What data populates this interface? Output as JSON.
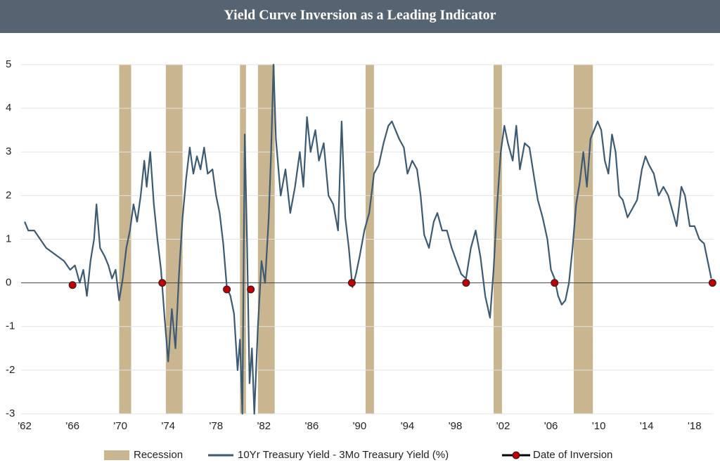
{
  "chart_data": {
    "type": "line",
    "title": "Yield Curve Inversion as a Leading Indicator",
    "xlim": [
      1961.7,
      2019.6
    ],
    "ylim": [
      -3,
      5
    ],
    "xticks": [
      {
        "value": 1962,
        "label": "'62"
      },
      {
        "value": 1966,
        "label": "'66"
      },
      {
        "value": 1970,
        "label": "'70"
      },
      {
        "value": 1974,
        "label": "'74"
      },
      {
        "value": 1978,
        "label": "'78"
      },
      {
        "value": 1982,
        "label": "'82"
      },
      {
        "value": 1986,
        "label": "'86"
      },
      {
        "value": 1990,
        "label": "'90"
      },
      {
        "value": 1994,
        "label": "'94"
      },
      {
        "value": 1998,
        "label": "'98"
      },
      {
        "value": 2002,
        "label": "'02"
      },
      {
        "value": 2006,
        "label": "'06"
      },
      {
        "value": 2010,
        "label": "'10"
      },
      {
        "value": 2014,
        "label": "'14"
      },
      {
        "value": 2018,
        "label": "'18"
      }
    ],
    "yticks": [
      -3,
      -2,
      -1,
      0,
      1,
      2,
      3,
      4,
      5
    ],
    "grid": true,
    "series": [
      {
        "name": "Recession",
        "color": "#c9b58f",
        "ranges": [
          [
            1969.9,
            1970.9
          ],
          [
            1973.8,
            1975.2
          ],
          [
            1980.0,
            1980.5
          ],
          [
            1981.5,
            1982.9
          ],
          [
            1990.5,
            1991.2
          ],
          [
            2001.2,
            2001.9
          ],
          [
            2007.9,
            2009.5
          ]
        ]
      },
      {
        "name": "10Yr Treasury Yield - 3Mo Treasury Yield (%)",
        "color": "#3d5a73",
        "x": [
          1962.0,
          1962.3,
          1962.8,
          1963.3,
          1963.8,
          1964.3,
          1964.8,
          1965.3,
          1965.8,
          1966.2,
          1966.6,
          1966.9,
          1967.2,
          1967.5,
          1967.8,
          1968.0,
          1968.3,
          1968.7,
          1969.0,
          1969.3,
          1969.6,
          1969.9,
          1970.2,
          1970.5,
          1970.8,
          1971.1,
          1971.4,
          1971.7,
          1972.0,
          1972.2,
          1972.5,
          1972.8,
          1973.1,
          1973.4,
          1973.7,
          1974.0,
          1974.3,
          1974.6,
          1974.9,
          1975.2,
          1975.5,
          1975.8,
          1976.1,
          1976.4,
          1976.7,
          1977.0,
          1977.3,
          1977.7,
          1978.0,
          1978.3,
          1978.6,
          1978.9,
          1979.2,
          1979.5,
          1979.8,
          1980.0,
          1980.2,
          1980.4,
          1980.6,
          1980.8,
          1981.0,
          1981.2,
          1981.5,
          1981.8,
          1982.1,
          1982.4,
          1982.6,
          1982.8,
          1983.0,
          1983.4,
          1983.8,
          1984.2,
          1984.6,
          1985.0,
          1985.3,
          1985.6,
          1985.9,
          1986.3,
          1986.6,
          1987.0,
          1987.4,
          1987.8,
          1988.2,
          1988.5,
          1988.8,
          1989.1,
          1989.4,
          1989.7,
          1990.0,
          1990.4,
          1990.8,
          1991.2,
          1991.6,
          1992.0,
          1992.4,
          1992.7,
          1993.0,
          1993.3,
          1993.7,
          1994.0,
          1994.4,
          1994.8,
          1995.1,
          1995.4,
          1995.8,
          1996.2,
          1996.5,
          1996.9,
          1997.3,
          1997.7,
          1998.1,
          1998.5,
          1998.9,
          1999.3,
          1999.7,
          2000.1,
          2000.5,
          2000.9,
          2001.2,
          2001.5,
          2001.8,
          2002.1,
          2002.4,
          2002.8,
          2003.1,
          2003.4,
          2003.8,
          2004.2,
          2004.6,
          2004.9,
          2005.3,
          2005.7,
          2006.0,
          2006.3,
          2006.6,
          2006.9,
          2007.2,
          2007.5,
          2007.8,
          2008.1,
          2008.4,
          2008.7,
          2009.0,
          2009.3,
          2009.6,
          2009.9,
          2010.2,
          2010.5,
          2010.8,
          2011.1,
          2011.4,
          2011.7,
          2012.0,
          2012.4,
          2012.8,
          2013.2,
          2013.6,
          2013.9,
          2014.2,
          2014.6,
          2015.0,
          2015.4,
          2015.8,
          2016.2,
          2016.5,
          2016.9,
          2017.2,
          2017.6,
          2018.0,
          2018.4,
          2018.8,
          2019.1,
          2019.4
        ],
        "values": [
          1.4,
          1.2,
          1.2,
          1.0,
          0.8,
          0.7,
          0.6,
          0.5,
          0.3,
          0.4,
          0.0,
          0.3,
          -0.3,
          0.5,
          1.0,
          1.8,
          0.8,
          0.6,
          0.4,
          0.1,
          0.3,
          -0.4,
          0.1,
          0.8,
          1.2,
          1.8,
          1.4,
          2.0,
          2.8,
          2.2,
          3.0,
          1.8,
          1.0,
          0.3,
          -0.8,
          -1.8,
          -0.6,
          -1.5,
          0.2,
          1.5,
          2.4,
          3.1,
          2.5,
          2.9,
          2.6,
          3.1,
          2.5,
          2.6,
          2.0,
          1.6,
          0.9,
          -0.1,
          -0.3,
          -0.7,
          -2.0,
          -1.3,
          -3.0,
          3.4,
          0.8,
          -2.3,
          -1.5,
          -3.0,
          -1.0,
          0.5,
          0.0,
          1.5,
          3.0,
          5.0,
          3.3,
          2.0,
          2.6,
          1.6,
          2.2,
          3.0,
          2.2,
          3.8,
          3.0,
          3.5,
          2.8,
          3.2,
          2.0,
          1.8,
          1.2,
          3.7,
          1.5,
          0.8,
          -0.1,
          0.2,
          0.6,
          1.2,
          1.6,
          2.5,
          2.7,
          3.2,
          3.6,
          3.7,
          3.5,
          3.3,
          3.1,
          2.5,
          2.8,
          2.6,
          2.0,
          1.1,
          0.8,
          1.4,
          1.6,
          1.2,
          1.2,
          0.8,
          0.5,
          0.2,
          0.1,
          0.8,
          1.2,
          0.6,
          -0.3,
          -0.8,
          0.3,
          1.8,
          3.0,
          3.6,
          3.2,
          2.8,
          3.6,
          2.6,
          3.2,
          3.1,
          2.4,
          1.9,
          1.5,
          1.0,
          0.3,
          0.1,
          -0.3,
          -0.5,
          -0.4,
          0.0,
          0.8,
          1.8,
          2.3,
          3.0,
          2.2,
          3.3,
          3.5,
          3.7,
          3.5,
          2.8,
          2.5,
          3.4,
          3.0,
          2.0,
          1.9,
          1.5,
          1.7,
          1.9,
          2.6,
          2.9,
          2.7,
          2.5,
          2.0,
          2.2,
          2.0,
          1.6,
          1.3,
          2.2,
          2.0,
          1.3,
          1.3,
          1.0,
          0.9,
          0.5,
          0.1
        ]
      },
      {
        "name": "Date of Inversion",
        "color": "#c00000",
        "x": [
          1966.0,
          1973.5,
          1978.9,
          1980.9,
          1989.35,
          1998.9,
          2006.3,
          2019.5
        ],
        "values": [
          -0.05,
          0,
          -0.15,
          -0.15,
          0,
          0,
          0,
          0
        ]
      }
    ]
  }
}
